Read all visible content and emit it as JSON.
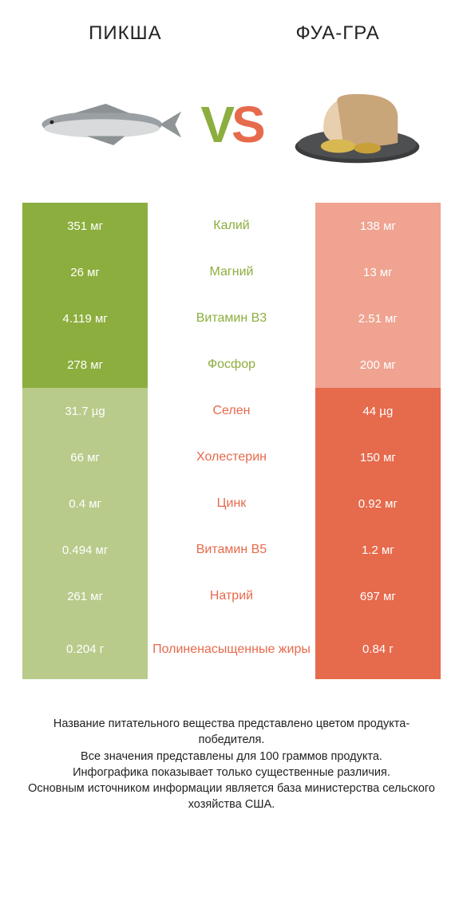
{
  "colors": {
    "left": "#8cae3e",
    "right": "#e66a4c",
    "left_dim": "#b8cb8b",
    "right_dim": "#efa390",
    "bg": "#ffffff",
    "text": "#222222"
  },
  "products": {
    "left_title": "ПИКША",
    "right_title": "ФУА-ГРА"
  },
  "vs": {
    "v": "V",
    "s": "S"
  },
  "rows": [
    {
      "nutrient": "Калий",
      "left": "351 мг",
      "right": "138 мг",
      "winner": "left"
    },
    {
      "nutrient": "Магний",
      "left": "26 мг",
      "right": "13 мг",
      "winner": "left"
    },
    {
      "nutrient": "Витамин B3",
      "left": "4.119 мг",
      "right": "2.51 мг",
      "winner": "left"
    },
    {
      "nutrient": "Фосфор",
      "left": "278 мг",
      "right": "200 мг",
      "winner": "left"
    },
    {
      "nutrient": "Селен",
      "left": "31.7 µg",
      "right": "44 µg",
      "winner": "right"
    },
    {
      "nutrient": "Холестерин",
      "left": "66 мг",
      "right": "150 мг",
      "winner": "right"
    },
    {
      "nutrient": "Цинк",
      "left": "0.4 мг",
      "right": "0.92 мг",
      "winner": "right"
    },
    {
      "nutrient": "Витамин B5",
      "left": "0.494 мг",
      "right": "1.2 мг",
      "winner": "right"
    },
    {
      "nutrient": "Натрий",
      "left": "261 мг",
      "right": "697 мг",
      "winner": "right"
    },
    {
      "nutrient": "Полиненасыщенные жиры",
      "left": "0.204 г",
      "right": "0.84 г",
      "winner": "right",
      "tall": true
    }
  ],
  "footnote": {
    "l1": "Название питательного вещества представлено цветом продукта-победителя.",
    "l2": "Все значения представлены для 100 граммов продукта.",
    "l3": "Инфографика показывает только существенные различия.",
    "l4": "Основным источником информации является база министерства сельского хозяйства США."
  }
}
